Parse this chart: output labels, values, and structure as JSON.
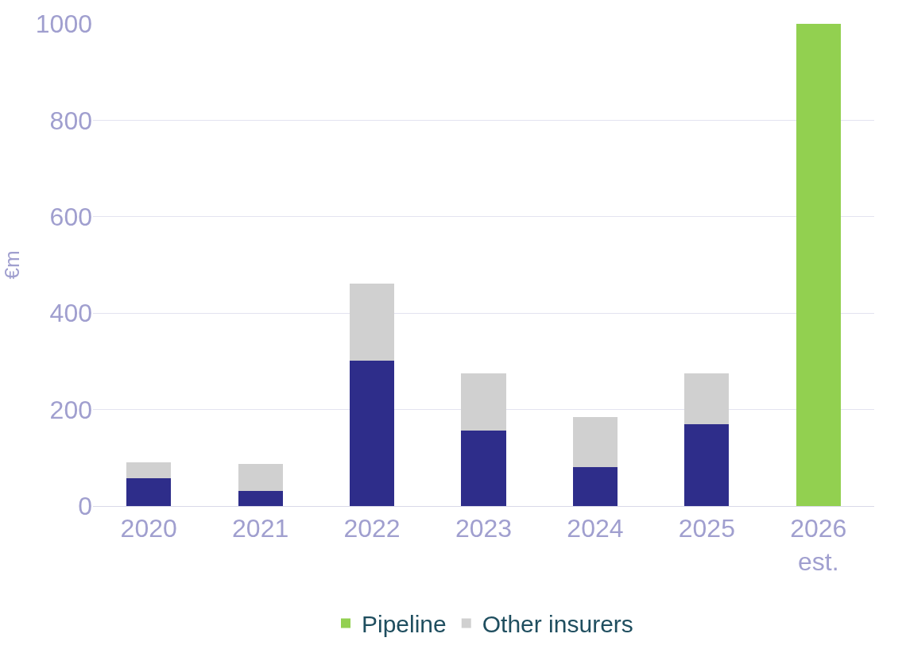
{
  "chart_data": {
    "type": "bar",
    "stacked": true,
    "ylabel": "€m",
    "categories": [
      "2020",
      "2021",
      "2022",
      "2023",
      "2024",
      "2025",
      "2026 est."
    ],
    "series": [
      {
        "color": "#2e2d8a",
        "values": [
          57,
          32,
          302,
          157,
          80,
          170,
          null
        ]
      },
      {
        "name": "Other insurers",
        "color": "#d0d0d0",
        "values": [
          33,
          55,
          159,
          118,
          104,
          105,
          null
        ]
      },
      {
        "name": "Pipeline",
        "color": "#92d050",
        "values": [
          null,
          null,
          null,
          null,
          null,
          null,
          1000
        ]
      }
    ],
    "ylim": [
      0,
      1000
    ],
    "yticks": [
      0,
      200,
      400,
      600,
      800,
      1000
    ],
    "grid": "y",
    "legend": "bottom"
  }
}
